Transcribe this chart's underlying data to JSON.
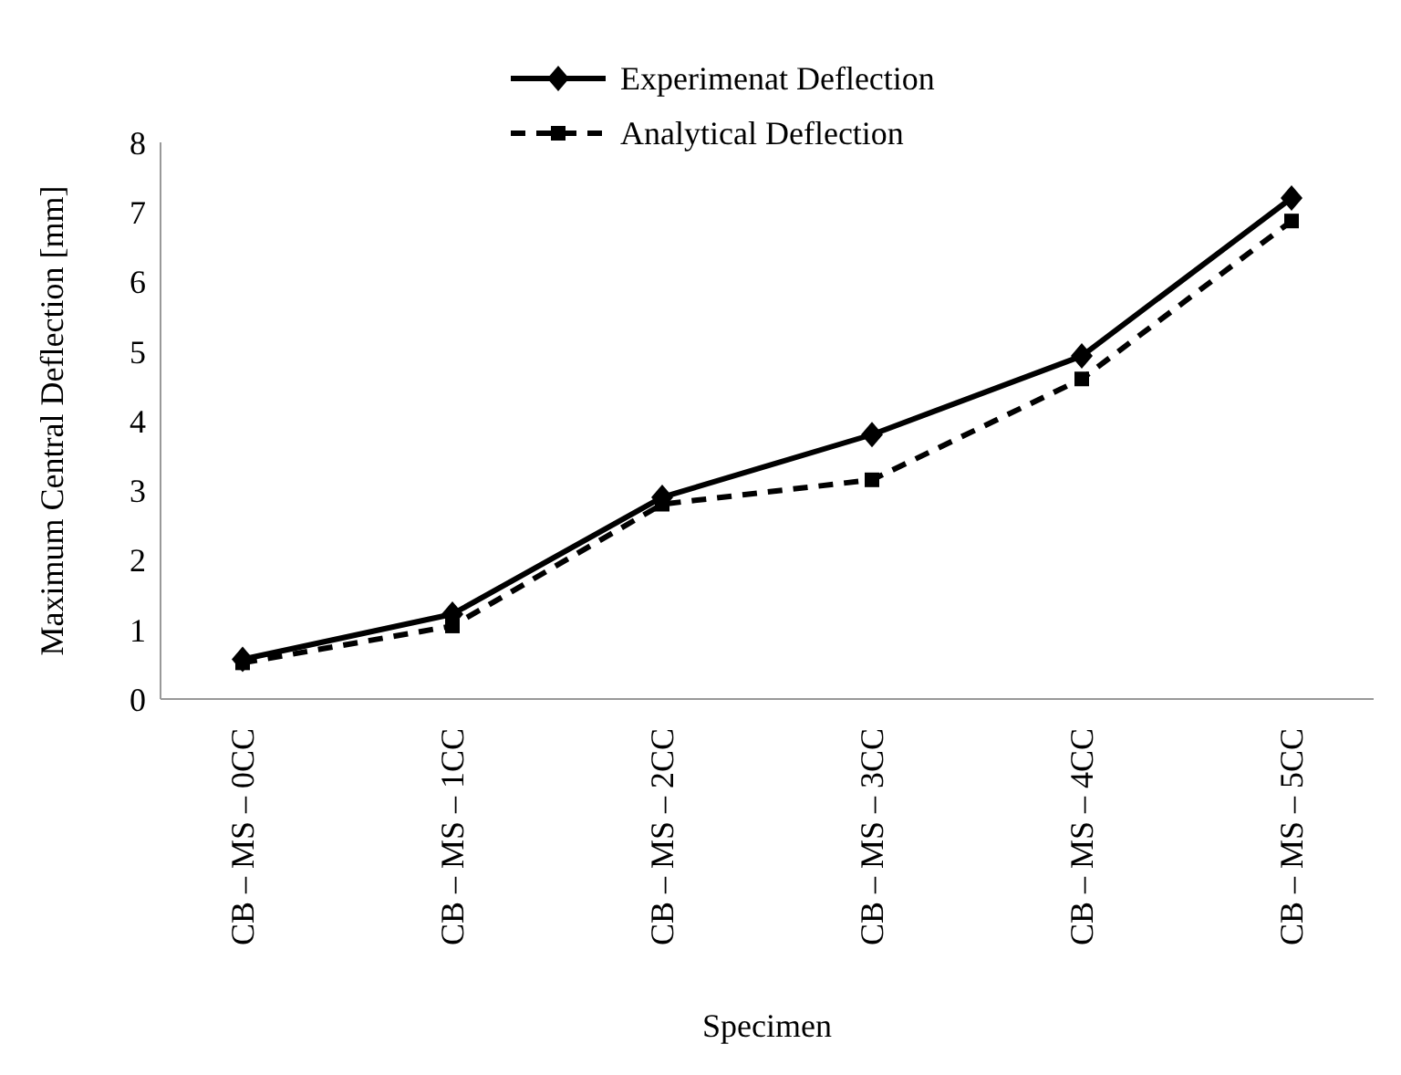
{
  "chart_data": {
    "type": "line",
    "xlabel": "Specimen",
    "ylabel": "Maximum Central Deflection [mm]",
    "categories": [
      "CB – MS – 0CC",
      "CB – MS – 1CC",
      "CB – MS – 2CC",
      "CB – MS – 3CC",
      "CB – MS – 4CC",
      "CB – MS – 5CC"
    ],
    "series": [
      {
        "name": "Experimenat Deflection",
        "color": "#000000",
        "marker": "diamond",
        "line_style": "solid",
        "values": [
          0.57,
          1.22,
          2.9,
          3.8,
          4.93,
          7.2
        ]
      },
      {
        "name": "Analytical Deflection",
        "color": "#000000",
        "marker": "square",
        "line_style": "dashed",
        "values": [
          0.52,
          1.05,
          2.8,
          3.15,
          4.6,
          6.87
        ]
      }
    ],
    "ylim": [
      0,
      8
    ],
    "yticks": [
      0,
      1,
      2,
      3,
      4,
      5,
      6,
      7,
      8
    ],
    "grid": false,
    "legend": "top"
  }
}
